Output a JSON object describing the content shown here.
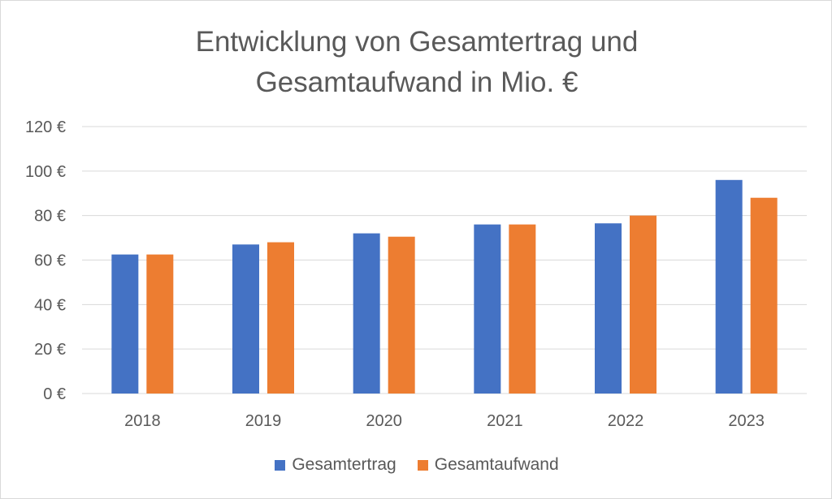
{
  "chart_data": {
    "type": "bar",
    "title_lines": [
      "Entwicklung von Gesamtertrag und",
      "Gesamtaufwand in Mio. €"
    ],
    "categories": [
      "2018",
      "2019",
      "2020",
      "2021",
      "2022",
      "2023"
    ],
    "series": [
      {
        "name": "Gesamtertrag",
        "color": "#4472c4",
        "values": [
          62.5,
          67,
          72,
          76,
          76.5,
          96
        ]
      },
      {
        "name": "Gesamtaufwand",
        "color": "#ed7d31",
        "values": [
          62.5,
          68,
          70.5,
          76,
          80,
          88
        ]
      }
    ],
    "ylim": [
      0,
      120
    ],
    "yticks": [
      0,
      20,
      40,
      60,
      80,
      100,
      120
    ],
    "ytick_labels": [
      "0 €",
      "20 €",
      "40 €",
      "60 €",
      "80 €",
      "100 €",
      "120 €"
    ],
    "xlabel": "",
    "ylabel": "",
    "grid": true,
    "legend_position": "bottom"
  }
}
